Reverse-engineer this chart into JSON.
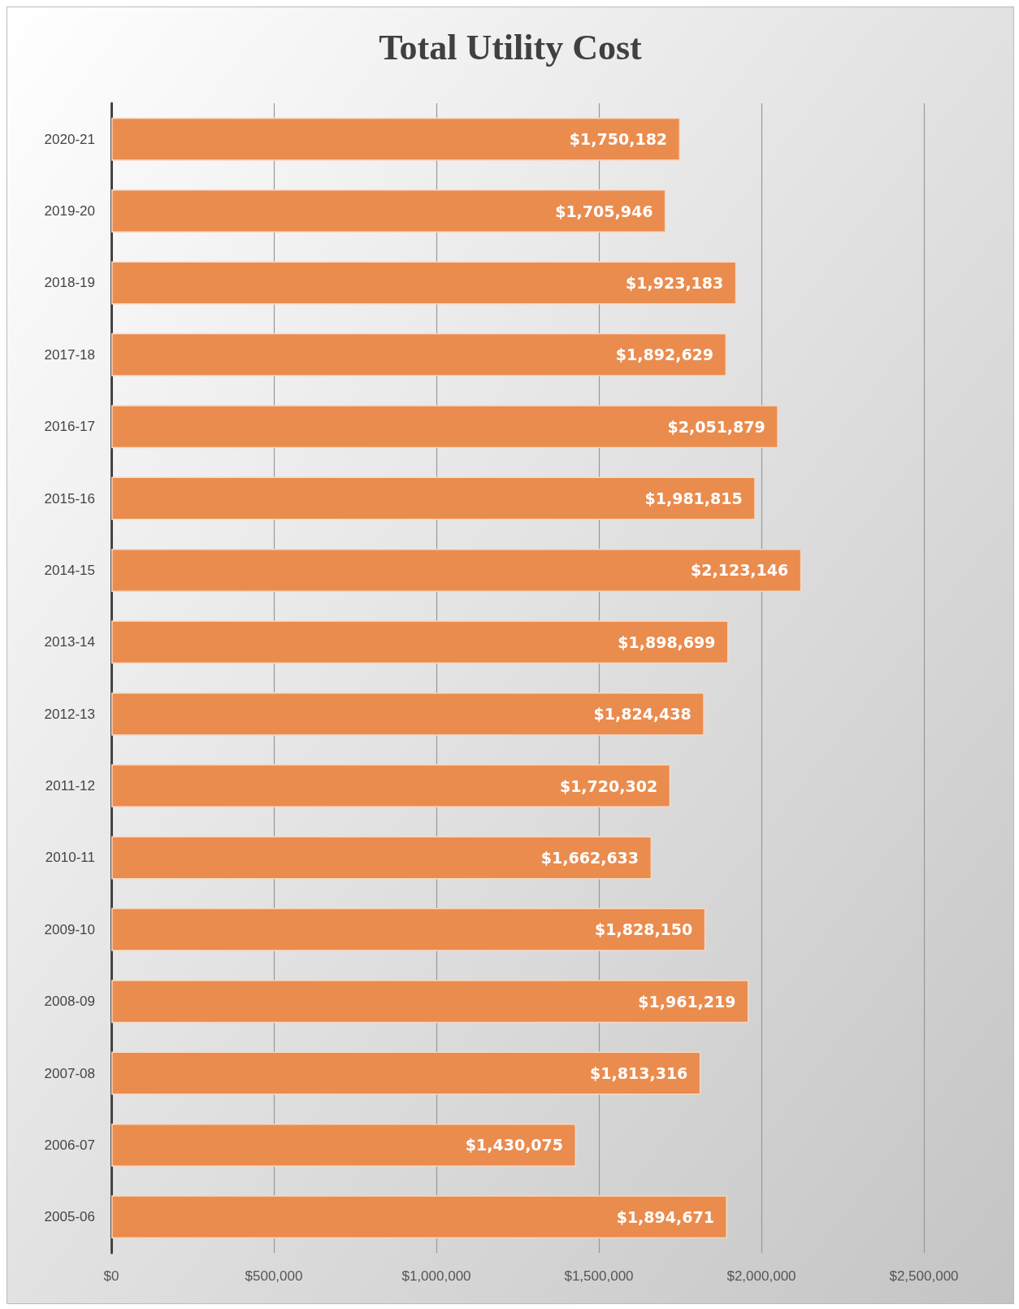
{
  "chart_data": {
    "type": "bar",
    "orientation": "horizontal",
    "title": "Total Utility Cost",
    "categories": [
      "2020-21",
      "2019-20",
      "2018-19",
      "2017-18",
      "2016-17",
      "2015-16",
      "2014-15",
      "2013-14",
      "2012-13",
      "2011-12",
      "2010-11",
      "2009-10",
      "2008-09",
      "2007-08",
      "2006-07",
      "2005-06"
    ],
    "values": [
      1750182,
      1705946,
      1923183,
      1892629,
      2051879,
      1981815,
      2123146,
      1898699,
      1824438,
      1720302,
      1662633,
      1828150,
      1961219,
      1813316,
      1430075,
      1894671
    ],
    "value_labels": [
      "$1,750,182",
      "$1,705,946",
      "$1,923,183",
      "$1,892,629",
      "$2,051,879",
      "$1,981,815",
      "$2,123,146",
      "$1,898,699",
      "$1,824,438",
      "$1,720,302",
      "$1,662,633",
      "$1,828,150",
      "$1,961,219",
      "$1,813,316",
      "$1,430,075",
      "$1,894,671"
    ],
    "color": "#ea8c4e",
    "xlim": [
      0,
      2500000
    ],
    "xticks": [
      {
        "value": 0,
        "label": "$0"
      },
      {
        "value": 500000,
        "label": "$500,000"
      },
      {
        "value": 1000000,
        "label": "$1,000,000"
      },
      {
        "value": 1500000,
        "label": "$1,500,000"
      },
      {
        "value": 2000000,
        "label": "$2,000,000"
      },
      {
        "value": 2500000,
        "label": "$2,500,000"
      }
    ],
    "grid": "x"
  }
}
